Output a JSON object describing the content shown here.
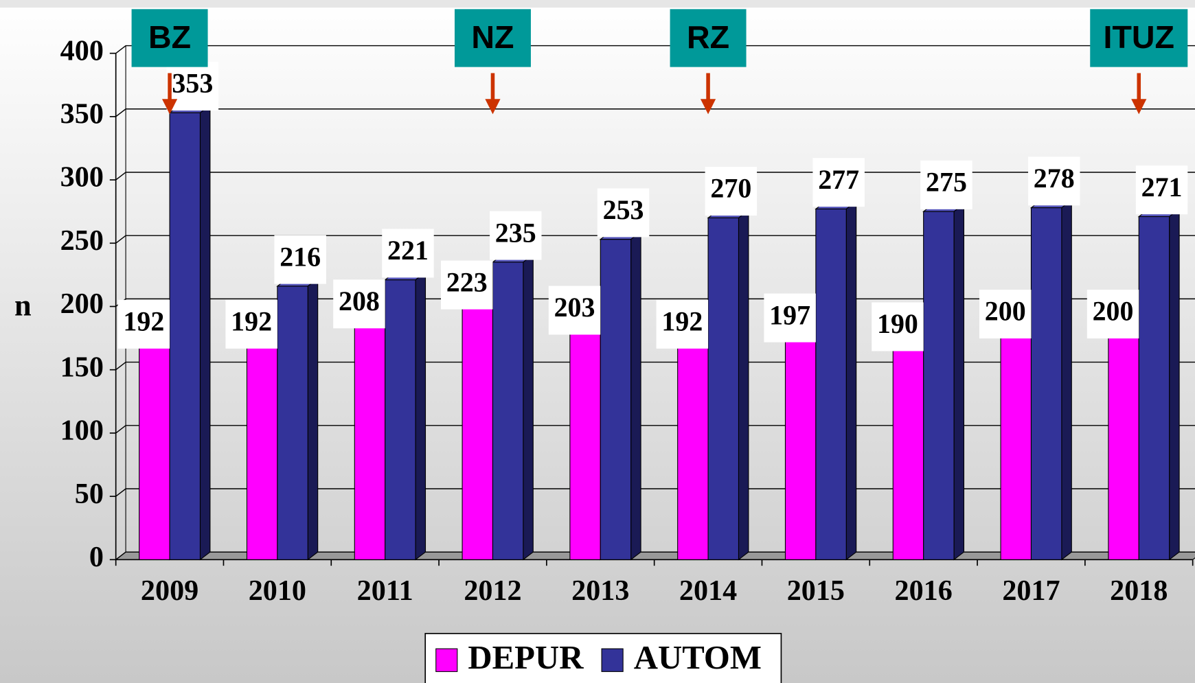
{
  "chart_data": {
    "type": "bar",
    "ylabel": "n",
    "categories": [
      "2009",
      "2010",
      "2011",
      "2012",
      "2013",
      "2014",
      "2015",
      "2016",
      "2017",
      "2018"
    ],
    "series": [
      {
        "name": "DEPUR",
        "color": "#ff00ff",
        "values": [
          192,
          192,
          208,
          223,
          203,
          192,
          197,
          190,
          200,
          200
        ]
      },
      {
        "name": "AUTOM",
        "color": "#333399",
        "values": [
          353,
          216,
          221,
          235,
          253,
          270,
          277,
          275,
          278,
          271
        ]
      }
    ],
    "ylim": [
      0,
      400
    ],
    "yticks": [
      0,
      50,
      100,
      150,
      200,
      250,
      300,
      350,
      400
    ],
    "grid": true,
    "annotations": [
      {
        "text": "BZ",
        "at": "2009"
      },
      {
        "text": "NZ",
        "at": "2012"
      },
      {
        "text": "RZ",
        "at": "2014"
      },
      {
        "text": "ITUZ",
        "at": "2018"
      }
    ],
    "legend": "bottom"
  }
}
